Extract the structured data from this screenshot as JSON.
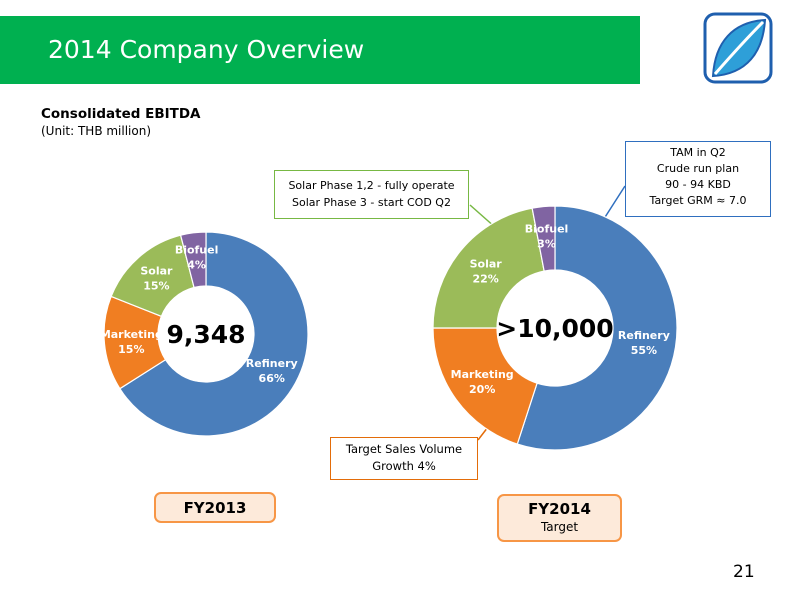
{
  "header": {
    "title": "2014 Company Overview"
  },
  "section": {
    "heading": "Consolidated EBITDA",
    "unit": "(Unit: THB million)"
  },
  "colors": {
    "title_bar": "#00b050",
    "refinery": "#4a7ebb",
    "marketing": "#f07e22",
    "solar": "#9bbb59",
    "biofuel": "#8064a2"
  },
  "chart_data": [
    {
      "type": "donut",
      "period": "FY2013",
      "center_label": "9,348",
      "slices": [
        {
          "name": "Refinery",
          "value": 66,
          "label": "66%",
          "color": "#4a7ebb"
        },
        {
          "name": "Marketing",
          "value": 15,
          "label": "15%",
          "color": "#f07e22"
        },
        {
          "name": "Solar",
          "value": 15,
          "label": "15%",
          "color": "#9bbb59"
        },
        {
          "name": "Biofuel",
          "value": 4,
          "label": "4%",
          "color": "#8064a2"
        }
      ]
    },
    {
      "type": "donut",
      "period": "FY2014",
      "period_sub": "Target",
      "center_label": ">10,000",
      "slices": [
        {
          "name": "Refinery",
          "value": 55,
          "label": "55%",
          "color": "#4a7ebb"
        },
        {
          "name": "Marketing",
          "value": 20,
          "label": "20%",
          "color": "#f07e22"
        },
        {
          "name": "Solar",
          "value": 22,
          "label": "22%",
          "color": "#9bbb59"
        },
        {
          "name": "Biofuel",
          "value": 3,
          "label": "3%",
          "color": "#8064a2"
        }
      ]
    }
  ],
  "callouts": {
    "solar": [
      "Solar Phase 1,2 - fully operate",
      "Solar Phase 3 - start COD Q2"
    ],
    "refinery": [
      "TAM in Q2",
      "Crude run plan",
      "90 - 94 KBD",
      "Target GRM ≈ 7.0"
    ],
    "marketing": [
      "Target Sales Volume",
      "Growth 4%"
    ]
  },
  "footer": {
    "page_number": "21"
  }
}
